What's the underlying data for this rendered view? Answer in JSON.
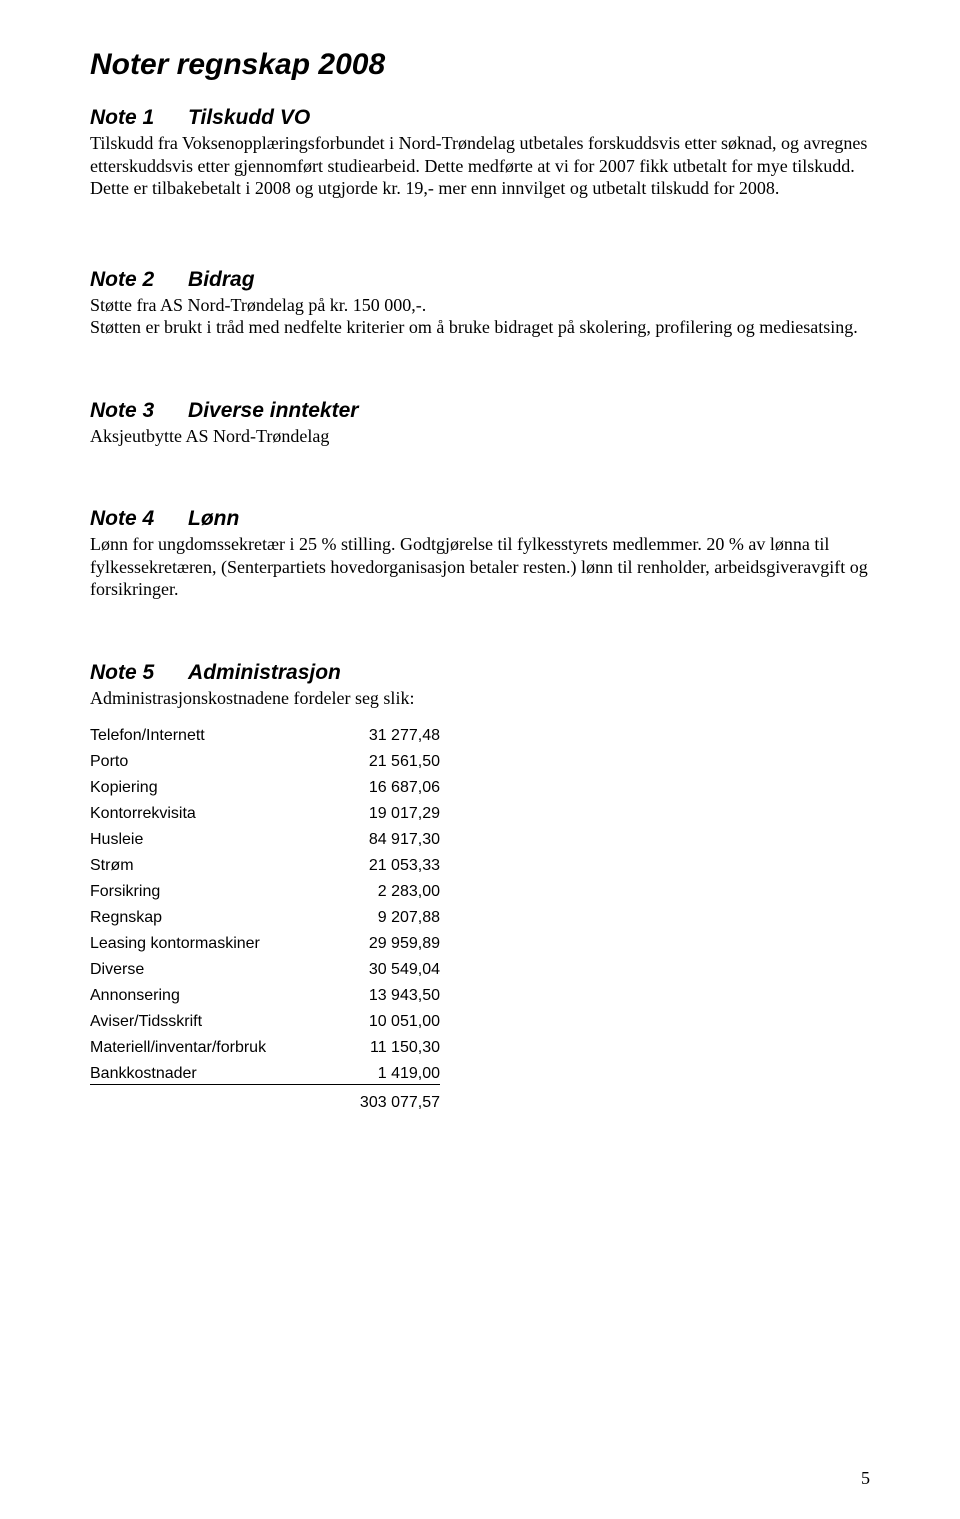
{
  "page": {
    "title": "Noter regnskap 2008",
    "number": "5"
  },
  "notes": [
    {
      "num": "Note 1",
      "title": "Tilskudd VO",
      "body": "Tilskudd fra Voksenopplæringsforbundet i Nord-Trøndelag utbetales forskuddsvis etter søknad, og avregnes etterskuddsvis etter gjennomført studiearbeid. Dette medførte at vi for 2007 fikk utbetalt for mye tilskudd. Dette er tilbakebetalt i 2008 og utgjorde kr. 19,- mer enn innvilget og utbetalt tilskudd for 2008."
    },
    {
      "num": "Note 2",
      "title": "Bidrag",
      "body": "Støtte fra AS Nord-Trøndelag på kr. 150 000,-.\nStøtten er brukt i tråd med nedfelte kriterier om å bruke bidraget på skolering, profilering og mediesatsing."
    },
    {
      "num": "Note 3",
      "title": "Diverse inntekter",
      "body": "Aksjeutbytte AS Nord-Trøndelag"
    },
    {
      "num": "Note 4",
      "title": "Lønn",
      "body": "Lønn for ungdomssekretær i 25 % stilling. Godtgjørelse til fylkesstyrets medlemmer. 20 % av lønna til fylkessekretæren, (Senterpartiets hovedorganisasjon betaler resten.) lønn til renholder, arbeidsgiveravgift og forsikringer."
    },
    {
      "num": "Note 5",
      "title": "Administrasjon",
      "body": "Administrasjonskostnadene fordeler seg slik:"
    }
  ],
  "costs": {
    "rows": [
      {
        "label": "Telefon/Internett",
        "value": "31 277,48"
      },
      {
        "label": "Porto",
        "value": "21 561,50"
      },
      {
        "label": "Kopiering",
        "value": "16 687,06"
      },
      {
        "label": "Kontorrekvisita",
        "value": "19 017,29"
      },
      {
        "label": "Husleie",
        "value": "84 917,30"
      },
      {
        "label": "Strøm",
        "value": "21 053,33"
      },
      {
        "label": "Forsikring",
        "value": "2 283,00"
      },
      {
        "label": "Regnskap",
        "value": "9 207,88"
      },
      {
        "label": "Leasing kontormaskiner",
        "value": "29 959,89"
      },
      {
        "label": "Diverse",
        "value": "30 549,04"
      },
      {
        "label": "Annonsering",
        "value": "13 943,50"
      },
      {
        "label": "Aviser/Tidsskrift",
        "value": "10 051,00"
      },
      {
        "label": "Materiell/inventar/forbruk",
        "value": "11 150,30"
      },
      {
        "label": "Bankkostnader",
        "value": "1 419,00"
      }
    ],
    "total": "303 077,57"
  }
}
